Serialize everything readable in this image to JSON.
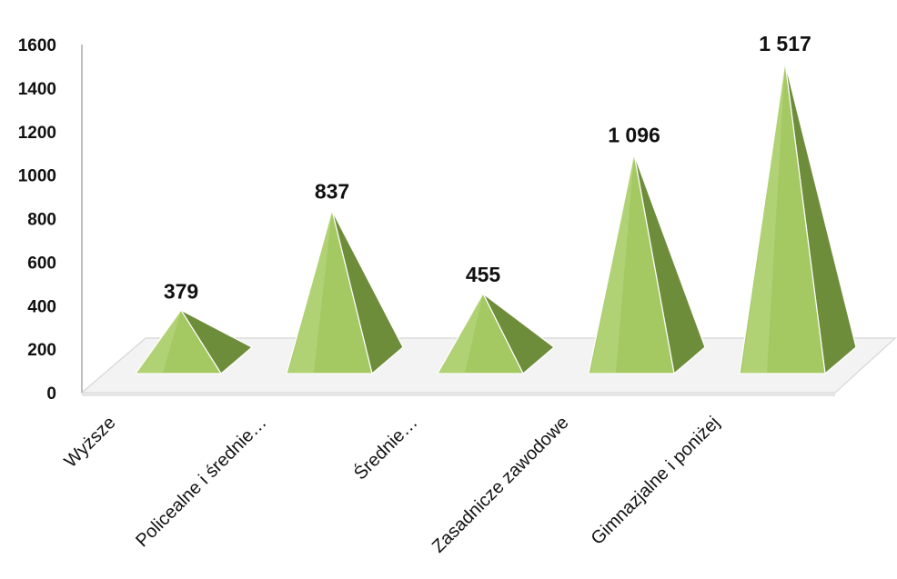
{
  "chart_data": {
    "type": "bar",
    "style": "3d-pyramid",
    "title": "",
    "xlabel": "",
    "ylabel": "",
    "categories": [
      "Wyższe",
      "Policealne i średnie…",
      "Średnie…",
      "Zasadnicze zawodowe",
      "Gimnazjalne i poniżej"
    ],
    "values": [
      379,
      837,
      455,
      1096,
      1517
    ],
    "data_labels": [
      "379",
      "837",
      "455",
      "1 096",
      "1 517"
    ],
    "ylim": [
      0,
      1600
    ],
    "y_ticks": [
      "0",
      "200",
      "400",
      "600",
      "800",
      "1000",
      "1200",
      "1400",
      "1600"
    ],
    "grid": false,
    "legend": "none",
    "colors": {
      "front_face": "#a4c862",
      "side_face": "#6e8d3a",
      "highlight": "#c2dd8c",
      "floor": "#f3f3f3",
      "floor_edge": "#dcdcdc",
      "axis": "#bfbfbf"
    }
  }
}
